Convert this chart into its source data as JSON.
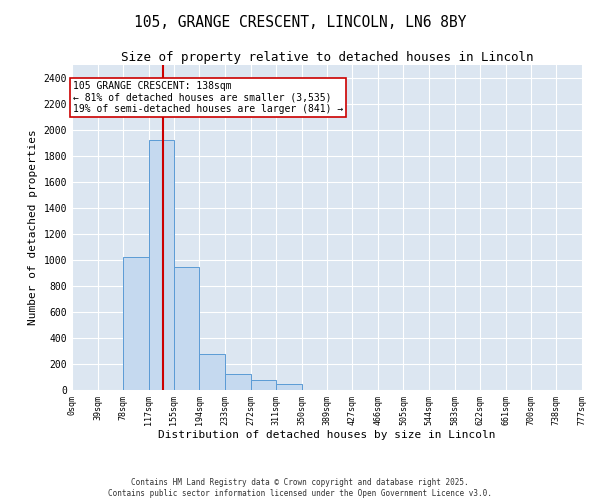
{
  "title_line1": "105, GRANGE CRESCENT, LINCOLN, LN6 8BY",
  "title_line2": "Size of property relative to detached houses in Lincoln",
  "xlabel": "Distribution of detached houses by size in Lincoln",
  "ylabel": "Number of detached properties",
  "bar_color": "#c5d9ef",
  "bar_edge_color": "#5b9bd5",
  "background_color": "#dce6f1",
  "grid_color": "#ffffff",
  "annotation_box_color": "#cc0000",
  "vline_color": "#cc0000",
  "bin_edges": [
    0,
    39,
    78,
    117,
    155,
    194,
    233,
    272,
    311,
    350,
    389,
    427,
    466,
    505,
    544,
    583,
    622,
    661,
    700,
    738,
    777
  ],
  "bar_heights": [
    0,
    0,
    1025,
    1925,
    950,
    275,
    120,
    75,
    50,
    0,
    0,
    0,
    0,
    0,
    0,
    0,
    0,
    0,
    0,
    0
  ],
  "bin_labels": [
    "0sqm",
    "39sqm",
    "78sqm",
    "117sqm",
    "155sqm",
    "194sqm",
    "233sqm",
    "272sqm",
    "311sqm",
    "350sqm",
    "389sqm",
    "427sqm",
    "466sqm",
    "505sqm",
    "544sqm",
    "583sqm",
    "622sqm",
    "661sqm",
    "700sqm",
    "738sqm",
    "777sqm"
  ],
  "vline_x": 138,
  "annotation_text": "105 GRANGE CRESCENT: 138sqm\n← 81% of detached houses are smaller (3,535)\n19% of semi-detached houses are larger (841) →",
  "ylim": [
    0,
    2500
  ],
  "yticks": [
    0,
    200,
    400,
    600,
    800,
    1000,
    1200,
    1400,
    1600,
    1800,
    2000,
    2200,
    2400
  ],
  "footnote": "Contains HM Land Registry data © Crown copyright and database right 2025.\nContains public sector information licensed under the Open Government Licence v3.0.",
  "fig_width": 6.0,
  "fig_height": 5.0,
  "dpi": 100
}
